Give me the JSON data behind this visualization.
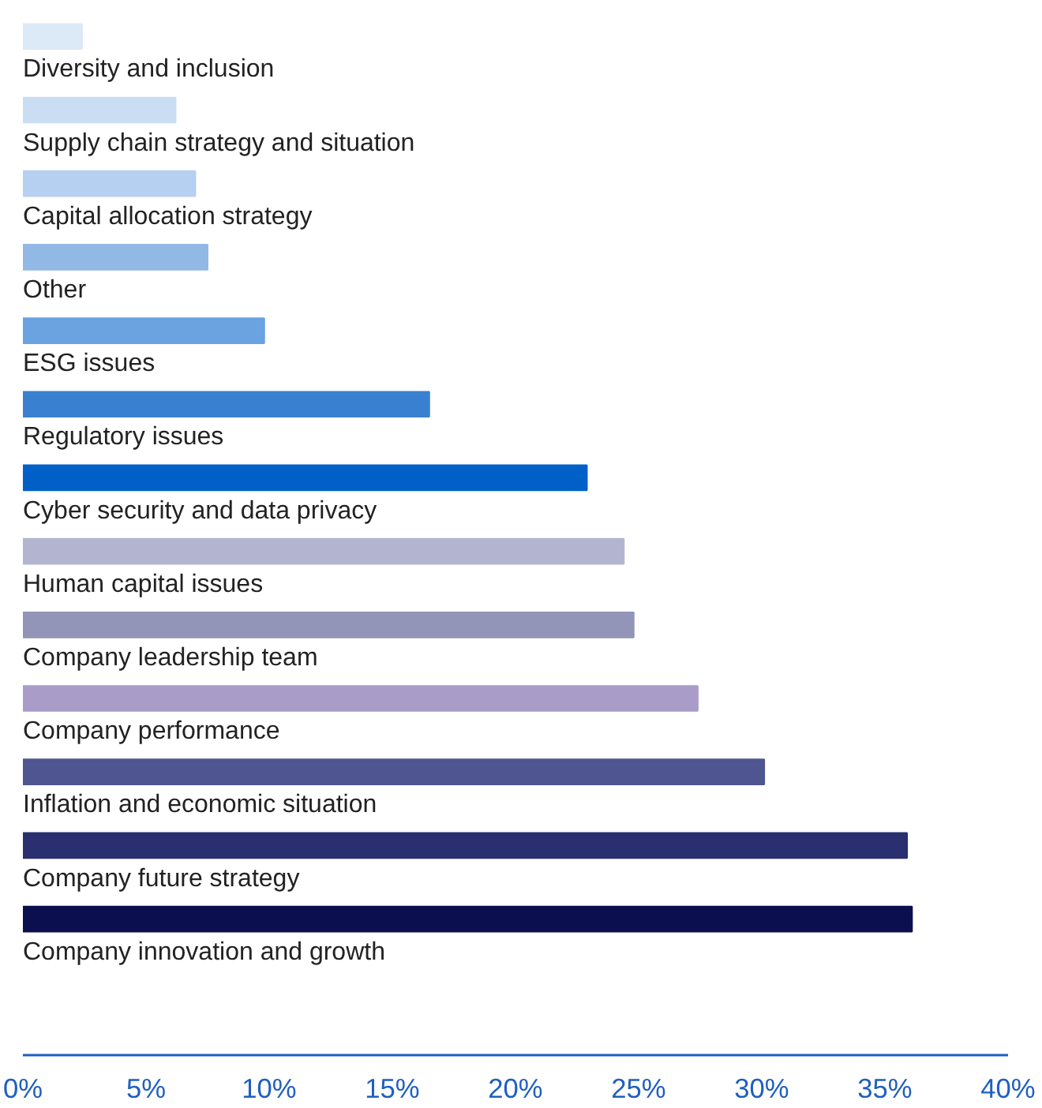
{
  "chart_data": {
    "type": "bar",
    "orientation": "horizontal",
    "categories": [
      "Diversity and inclusion",
      "Supply chain strategy and situation",
      "Capital allocation strategy",
      "Other",
      "ESG issues",
      "Regulatory issues",
      "Cyber security and data privacy",
      "Human capital issues",
      "Company leadership team",
      "Company performance",
      "Inflation and economic situation",
      "Company future strategy",
      "Company innovation and growth"
    ],
    "values": [
      2.4,
      6.2,
      7.0,
      7.5,
      9.8,
      16.5,
      22.9,
      24.4,
      24.8,
      27.4,
      30.1,
      35.9,
      36.1
    ],
    "colors": [
      "#dce9f7",
      "#c9ddf3",
      "#b5d0f0",
      "#92b9e5",
      "#6aa3df",
      "#3a80d0",
      "#0060c8",
      "#b3b5d0",
      "#9294b8",
      "#a99cc8",
      "#4e5590",
      "#2a2f70",
      "#0c0f4f"
    ],
    "xlim": [
      0,
      40
    ],
    "xticks": [
      {
        "value": 0,
        "label": "0%"
      },
      {
        "value": 5,
        "label": "5%"
      },
      {
        "value": 10,
        "label": "10%"
      },
      {
        "value": 15,
        "label": "15%"
      },
      {
        "value": 20,
        "label": "20%"
      },
      {
        "value": 25,
        "label": "25%"
      },
      {
        "value": 30,
        "label": "30%"
      },
      {
        "value": 35,
        "label": "35%"
      },
      {
        "value": 40,
        "label": "40%"
      }
    ],
    "grid": false
  }
}
